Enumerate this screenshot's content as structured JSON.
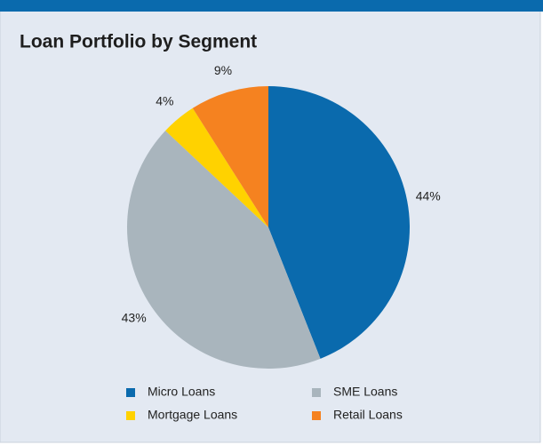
{
  "chart_data": {
    "type": "pie",
    "title": "Loan Portfolio by Segment",
    "categories": [
      "Micro Loans",
      "SME Loans",
      "Mortgage Loans",
      "Retail Loans"
    ],
    "values": [
      44,
      43,
      4,
      9
    ],
    "value_labels": [
      "44%",
      "43%",
      "4%",
      "9%"
    ],
    "colors": [
      "#0a6aad",
      "#a9b5bd",
      "#ffd200",
      "#f58220"
    ],
    "legend": "bottom"
  }
}
